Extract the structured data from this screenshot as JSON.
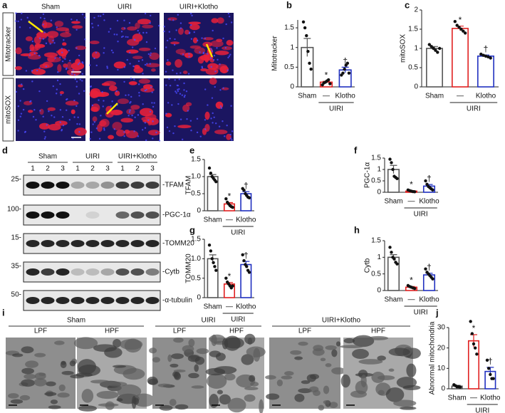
{
  "figure_a": {
    "label": "a",
    "columns": [
      "Sham",
      "UIRI",
      "UIRI+Klotho"
    ],
    "rows": [
      "Mitotracker",
      "mitoSOX"
    ]
  },
  "blot_d": {
    "label": "d",
    "groups": [
      "Sham",
      "UIRI",
      "UIRI+Klotho"
    ],
    "lanes": [
      1,
      2,
      3
    ],
    "rows": [
      {
        "marker": "25-",
        "protein": "-TFAM"
      },
      {
        "marker": "100-",
        "protein": "-PGC-1α"
      },
      {
        "marker": "15-",
        "protein": "-TOMM20"
      },
      {
        "marker": "35-",
        "protein": "-Cytb"
      },
      {
        "marker": "50-",
        "protein": "-α-tubulin"
      }
    ]
  },
  "figure_i": {
    "label": "i",
    "groups": [
      "Sham",
      "UIRI",
      "UIRI+Klotho"
    ],
    "fields": [
      "LPF",
      "HPF"
    ]
  },
  "chart_data": [
    {
      "type": "bar",
      "label": "b",
      "ylabel": "Mitotracker",
      "categories": [
        "Sham",
        "—",
        "Klotho"
      ],
      "group_label": "UIRI",
      "colors": [
        "#555555",
        "#e02020",
        "#2030c0"
      ],
      "values": [
        1.0,
        0.12,
        0.43
      ],
      "errors": [
        0.23,
        0.02,
        0.07
      ],
      "points": [
        [
          1.65,
          1.5,
          1.3,
          0.9,
          0.6,
          0.45
        ],
        [
          0.05,
          0.1,
          0.12,
          0.15,
          0.18,
          0.08
        ],
        [
          0.3,
          0.35,
          0.45,
          0.55,
          0.6,
          0.35
        ]
      ],
      "annotations": [
        null,
        "*",
        "†"
      ],
      "ylim": [
        0,
        1.7
      ],
      "yticks": [
        0,
        0.5,
        1,
        1.5
      ]
    },
    {
      "type": "bar",
      "label": "c",
      "ylabel": "mitoSOX",
      "categories": [
        "Sham",
        "—",
        "Klotho"
      ],
      "group_label": "UIRI",
      "colors": [
        "#555555",
        "#e02020",
        "#2030c0"
      ],
      "values": [
        1.0,
        1.52,
        0.8
      ],
      "errors": [
        0.05,
        0.06,
        0.03
      ],
      "points": [
        [
          1.1,
          1.05,
          1.0,
          0.95,
          0.9,
          1.0
        ],
        [
          1.7,
          1.6,
          1.55,
          1.5,
          1.45,
          1.4
        ],
        [
          0.85,
          0.82,
          0.8,
          0.78,
          0.75
        ]
      ],
      "annotations": [
        null,
        "*",
        "†"
      ],
      "ylim": [
        0,
        2
      ],
      "yticks": [
        0,
        0.5,
        1,
        1.5,
        2
      ]
    },
    {
      "type": "bar",
      "label": "e",
      "ylabel": "TFAM",
      "categories": [
        "Sham",
        "—",
        "Klotho"
      ],
      "group_label": "UIRI",
      "colors": [
        "#555555",
        "#e02020",
        "#2030c0"
      ],
      "values": [
        1.0,
        0.2,
        0.5
      ],
      "errors": [
        0.06,
        0.04,
        0.06
      ],
      "points": [
        [
          1.25,
          1.1,
          1.0,
          0.95,
          0.9,
          0.85
        ],
        [
          0.35,
          0.25,
          0.2,
          0.15,
          0.12,
          0.1
        ],
        [
          0.65,
          0.6,
          0.5,
          0.45,
          0.4,
          0.38
        ]
      ],
      "annotations": [
        null,
        "*",
        "†"
      ],
      "ylim": [
        0,
        1.5
      ],
      "yticks": [
        0,
        0.5,
        {
          "value": 1,
          "label": "1.0"
        },
        1.5
      ]
    },
    {
      "type": "bar",
      "label": "f",
      "ylabel": "PGC-1α",
      "categories": [
        "Sham",
        "—",
        "Klotho"
      ],
      "group_label": "UIRI",
      "colors": [
        "#555555",
        "#e02020",
        "#2030c0"
      ],
      "values": [
        1.0,
        0.05,
        0.27
      ],
      "errors": [
        0.18,
        0.02,
        0.07
      ],
      "points": [
        [
          1.45,
          1.3,
          1.0,
          0.7,
          0.65,
          0.6
        ],
        [
          0.1,
          0.07,
          0.05,
          0.03,
          0.02
        ],
        [
          0.5,
          0.35,
          0.25,
          0.2,
          0.15,
          0.1
        ]
      ],
      "annotations": [
        null,
        "*",
        "†"
      ],
      "ylim": [
        0,
        1.5
      ],
      "yticks": [
        0,
        0.5,
        1,
        1.5
      ]
    },
    {
      "type": "bar",
      "label": "g",
      "ylabel": "TOMM20",
      "categories": [
        "Sham",
        "—",
        "Klotho"
      ],
      "group_label": "UIRI",
      "colors": [
        "#555555",
        "#e02020",
        "#2030c0"
      ],
      "values": [
        1.0,
        0.35,
        0.85
      ],
      "errors": [
        0.1,
        0.04,
        0.08
      ],
      "points": [
        [
          1.35,
          1.2,
          1.0,
          0.9,
          0.8,
          0.7
        ],
        [
          0.5,
          0.4,
          0.35,
          0.3,
          0.25,
          0.3
        ],
        [
          1.1,
          0.95,
          0.85,
          0.8,
          0.7,
          0.65
        ]
      ],
      "annotations": [
        null,
        "*",
        "†"
      ],
      "ylim": [
        0,
        1.5
      ],
      "yticks": [
        0,
        0.5,
        {
          "value": 1,
          "label": "1.0"
        },
        1.5
      ]
    },
    {
      "type": "bar",
      "label": "h",
      "ylabel": "Cytb",
      "categories": [
        "Sham",
        "—",
        "Klotho"
      ],
      "group_label": "UIRI",
      "colors": [
        "#555555",
        "#e02020",
        "#2030c0"
      ],
      "values": [
        1.0,
        0.1,
        0.47
      ],
      "errors": [
        0.08,
        0.02,
        0.05
      ],
      "points": [
        [
          1.3,
          1.15,
          1.0,
          0.95,
          0.85,
          0.8
        ],
        [
          0.15,
          0.12,
          0.1,
          0.08,
          0.06
        ],
        [
          0.65,
          0.55,
          0.5,
          0.45,
          0.4,
          0.35
        ]
      ],
      "annotations": [
        null,
        "*",
        "†"
      ],
      "ylim": [
        0,
        1.5
      ],
      "yticks": [
        0,
        0.5,
        1,
        1.5
      ]
    },
    {
      "type": "bar",
      "label": "j",
      "ylabel": "Abnormal mitochondria",
      "categories": [
        "Sham",
        "—",
        "Klotho"
      ],
      "group_label": "UIRI",
      "colors": [
        "#555555",
        "#e02020",
        "#2030c0"
      ],
      "values": [
        1.3,
        23.5,
        8.5
      ],
      "errors": [
        0.4,
        3,
        2
      ],
      "points": [
        [
          2,
          1.5,
          1,
          1,
          0.8
        ],
        [
          33,
          27,
          22,
          20,
          17
        ],
        [
          14,
          10,
          7,
          5,
          5
        ]
      ],
      "annotations": [
        null,
        "*",
        "†"
      ],
      "ylim": [
        0,
        30
      ],
      "yticks": [
        0,
        10,
        20,
        30
      ]
    }
  ]
}
